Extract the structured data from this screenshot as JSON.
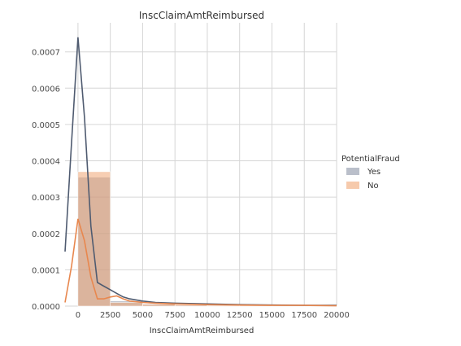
{
  "chart_data": {
    "type": "area",
    "title": "InscClaimAmtReimbursed",
    "xlabel": "InscClaimAmtReimbursed",
    "ylabel": "",
    "xlim": [
      -1000,
      20000
    ],
    "ylim": [
      0,
      0.00078
    ],
    "grid": true,
    "x_ticks": [
      0,
      2500,
      5000,
      7500,
      10000,
      12500,
      15000,
      17500,
      20000
    ],
    "y_ticks": [
      0.0,
      0.0001,
      0.0002,
      0.0003,
      0.0004,
      0.0005,
      0.0006,
      0.0007
    ],
    "y_tick_labels": [
      "0.0000",
      "0.0001",
      "0.0002",
      "0.0003",
      "0.0004",
      "0.0005",
      "0.0006",
      "0.0007"
    ],
    "legend": {
      "title": "PotentialFraud",
      "placement": "right",
      "entries": [
        {
          "name": "Yes",
          "color": "#8c95a6"
        },
        {
          "name": "No",
          "color": "#f0a674"
        }
      ]
    },
    "histogram": {
      "bin_edges": [
        0,
        2500,
        5000,
        7500,
        10000,
        12500,
        15000,
        17500,
        20000
      ],
      "series": [
        {
          "name": "Yes",
          "color": "#8c95a6",
          "values": [
            0.000355,
            1.4e-05,
            6e-06,
            4e-06,
            3e-06,
            2e-06,
            2e-06,
            1e-06
          ]
        },
        {
          "name": "No",
          "color": "#f0a674",
          "values": [
            0.00037,
            1e-05,
            5e-06,
            3e-06,
            2e-06,
            2e-06,
            1e-06,
            1e-06
          ]
        }
      ]
    },
    "kde": [
      {
        "name": "Yes",
        "color": "#4f5b70",
        "x": [
          -1000,
          -500,
          0,
          500,
          1000,
          1500,
          2000,
          2500,
          3000,
          3500,
          4000,
          5000,
          6000,
          7500,
          10000,
          12500,
          15000,
          17500,
          20000
        ],
        "y": [
          0.00015,
          0.00045,
          0.00074,
          0.00052,
          0.00022,
          6.5e-05,
          5.5e-05,
          4.5e-05,
          3.5e-05,
          2.5e-05,
          2e-05,
          1.4e-05,
          1e-05,
          8e-06,
          6e-06,
          4e-06,
          3e-06,
          2e-06,
          2e-06
        ]
      },
      {
        "name": "No",
        "color": "#e8874e",
        "x": [
          -1000,
          -500,
          0,
          500,
          1000,
          1500,
          2000,
          2500,
          3000,
          3500,
          4000,
          5000,
          6000,
          7500,
          10000,
          12500,
          15000,
          17500,
          20000
        ],
        "y": [
          1e-05,
          0.00011,
          0.00024,
          0.00018,
          8e-05,
          2e-05,
          2e-05,
          2.5e-05,
          2.8e-05,
          2e-05,
          1.4e-05,
          1e-05,
          8e-06,
          6e-06,
          4e-06,
          3e-06,
          2e-06,
          2e-06,
          1e-06
        ]
      }
    ]
  }
}
